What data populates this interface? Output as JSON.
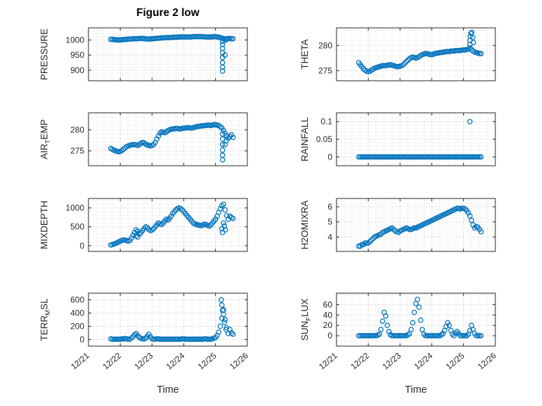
{
  "figure": {
    "title": "Figure 2 low",
    "xlabel": "Time",
    "marker_color": "#0072BD",
    "axis_color": "#262626",
    "grid_color": "#bbbbbb",
    "minor_grid_color": "#dcdcdc"
  },
  "chart_data": [
    {
      "type": "scatter",
      "name": "PRESSURE",
      "ylabel": {
        "pre": "PRESSURE",
        "sub": "",
        "post": ""
      },
      "x_start": 0.7,
      "x_step": 0.05,
      "xlim": [
        0,
        5
      ],
      "xticks": [
        0,
        1,
        2,
        3,
        4,
        5
      ],
      "xtick_labels": [
        "12/21",
        "12/22",
        "12/23",
        "12/24",
        "12/25",
        "12/26"
      ],
      "ylim": [
        865,
        1040
      ],
      "yticks": [
        900,
        950,
        1000
      ],
      "ytick_labels": [
        "900",
        "950",
        "1000"
      ],
      "y": [
        1002,
        1002,
        1001,
        1001,
        1000,
        1000,
        1000,
        1001,
        1001,
        1002,
        1002,
        1003,
        1003,
        1003,
        1004,
        1004,
        1004,
        1004,
        1005,
        1005,
        1005,
        1004,
        1004,
        1003,
        1003,
        1003,
        1004,
        1004,
        1005,
        1005,
        1006,
        1006,
        1007,
        1007,
        1007,
        1008,
        1008,
        1008,
        1008,
        1009,
        1009,
        1009,
        1009,
        1010,
        1010,
        1010,
        1010,
        1010,
        1010,
        1010,
        1010,
        1010,
        1011,
        1011,
        1011,
        1011,
        1011,
        1011,
        1011,
        1010,
        1010,
        1010,
        1010,
        1010,
        1010,
        1011,
        1011,
        1010,
        1009,
        1008,
        1006,
        1004,
        1003,
        1004,
        1005,
        1005,
        1004,
        1004
      ],
      "extra": [
        [
          4.22,
          995
        ],
        [
          4.22,
          985
        ],
        [
          4.22,
          972
        ],
        [
          4.22,
          958
        ],
        [
          4.22,
          942
        ],
        [
          4.22,
          925
        ],
        [
          4.22,
          910
        ],
        [
          4.22,
          897
        ],
        [
          4.3,
          950
        ],
        [
          4.33,
          1000
        ]
      ]
    },
    {
      "type": "scatter",
      "name": "THETA",
      "ylabel": {
        "pre": "THETA",
        "sub": "",
        "post": ""
      },
      "x_start": 0.7,
      "x_step": 0.05,
      "xlim": [
        0,
        5
      ],
      "xticks": [
        0,
        1,
        2,
        3,
        4,
        5
      ],
      "xtick_labels": [
        "12/21",
        "12/22",
        "12/23",
        "12/24",
        "12/25",
        "12/26"
      ],
      "ylim": [
        273,
        283.5
      ],
      "yticks": [
        275,
        280
      ],
      "ytick_labels": [
        "275",
        "280"
      ],
      "y": [
        276.6,
        276.2,
        275.8,
        275.4,
        275.1,
        274.9,
        274.8,
        274.9,
        275.1,
        275.3,
        275.5,
        275.6,
        275.7,
        275.8,
        275.9,
        276.0,
        276.0,
        276.0,
        276.1,
        276.1,
        276.2,
        276.1,
        276.0,
        275.9,
        275.8,
        275.8,
        275.9,
        276.0,
        276.2,
        276.5,
        276.8,
        277.1,
        277.4,
        277.6,
        277.7,
        277.6,
        277.5,
        277.6,
        277.8,
        278.0,
        278.2,
        278.3,
        278.4,
        278.4,
        278.3,
        278.2,
        278.2,
        278.3,
        278.4,
        278.5,
        278.5,
        278.6,
        278.6,
        278.7,
        278.7,
        278.8,
        278.8,
        278.8,
        278.9,
        278.9,
        278.9,
        279.0,
        279.0,
        279.0,
        279.0,
        279.1,
        279.1,
        279.1,
        279.2,
        279.3,
        279.5,
        279.2,
        278.9,
        278.7,
        278.6,
        278.5,
        278.4,
        278.4
      ],
      "extra": [
        [
          4.2,
          280.2
        ],
        [
          4.2,
          281.0
        ],
        [
          4.21,
          281.8
        ],
        [
          4.23,
          282.4
        ],
        [
          4.26,
          282.6
        ],
        [
          4.29,
          281.6
        ],
        [
          4.31,
          280.6
        ]
      ]
    },
    {
      "type": "scatter",
      "name": "AIR_TEMP",
      "ylabel": {
        "pre": "AIR",
        "sub": "T",
        "post": "EMP"
      },
      "x_start": 0.7,
      "x_step": 0.05,
      "xlim": [
        0,
        5
      ],
      "xticks": [
        0,
        1,
        2,
        3,
        4,
        5
      ],
      "xtick_labels": [
        "12/21",
        "12/22",
        "12/23",
        "12/24",
        "12/25",
        "12/26"
      ],
      "ylim": [
        271.5,
        284
      ],
      "yticks": [
        275,
        280
      ],
      "ytick_labels": [
        "275",
        "280"
      ],
      "y": [
        275.6,
        275.4,
        275.2,
        275.0,
        274.9,
        274.8,
        274.9,
        275.1,
        275.4,
        275.7,
        276.0,
        276.2,
        276.3,
        276.4,
        276.5,
        276.5,
        276.4,
        276.3,
        276.5,
        276.8,
        277.0,
        276.9,
        276.6,
        276.4,
        276.3,
        276.2,
        276.3,
        276.5,
        277.0,
        277.8,
        278.5,
        279.2,
        279.5,
        279.4,
        279.3,
        279.5,
        279.8,
        280.0,
        280.1,
        280.2,
        280.2,
        280.3,
        280.3,
        280.2,
        280.2,
        280.3,
        280.4,
        280.4,
        280.5,
        280.5,
        280.4,
        280.4,
        280.5,
        280.6,
        280.7,
        280.8,
        280.8,
        280.9,
        280.9,
        281.0,
        281.0,
        281.1,
        281.1,
        281.0,
        281.1,
        281.2,
        281.2,
        281.1,
        281.0,
        280.7,
        280.4,
        279.8,
        279.2,
        278.6,
        278.0,
        278.4,
        278.8,
        278.2
      ],
      "extra": [
        [
          4.22,
          279.0
        ],
        [
          4.22,
          277.8
        ],
        [
          4.22,
          276.5
        ],
        [
          4.22,
          275.2
        ],
        [
          4.22,
          274.0
        ],
        [
          4.22,
          272.9
        ],
        [
          4.3,
          276.5
        ],
        [
          4.34,
          277.4
        ]
      ]
    },
    {
      "type": "scatter",
      "name": "RAINFALL",
      "ylabel": {
        "pre": "RAINFALL",
        "sub": "",
        "post": ""
      },
      "x_start": 0.7,
      "x_step": 0.05,
      "xlim": [
        0,
        5
      ],
      "xticks": [
        0,
        1,
        2,
        3,
        4,
        5
      ],
      "xtick_labels": [
        "12/21",
        "12/22",
        "12/23",
        "12/24",
        "12/25",
        "12/26"
      ],
      "ylim": [
        -0.025,
        0.125
      ],
      "yticks": [
        0,
        0.05,
        0.1
      ],
      "ytick_labels": [
        "0",
        "0.05",
        "0.1"
      ],
      "y": [
        0,
        0,
        0,
        0,
        0,
        0,
        0,
        0,
        0,
        0,
        0,
        0,
        0,
        0,
        0,
        0,
        0,
        0,
        0,
        0,
        0,
        0,
        0,
        0,
        0,
        0,
        0,
        0,
        0,
        0,
        0,
        0,
        0,
        0,
        0,
        0,
        0,
        0,
        0,
        0,
        0,
        0,
        0,
        0,
        0,
        0,
        0,
        0,
        0,
        0,
        0,
        0,
        0,
        0,
        0,
        0,
        0,
        0,
        0,
        0,
        0,
        0,
        0,
        0,
        0,
        0,
        0,
        0,
        0,
        0,
        0,
        0,
        0,
        0,
        0,
        0,
        0,
        0
      ],
      "extra": [
        [
          4.2,
          0.1
        ]
      ]
    },
    {
      "type": "scatter",
      "name": "MIXDEPTH",
      "ylabel": {
        "pre": "MIXDEPTH",
        "sub": "",
        "post": ""
      },
      "x_start": 0.7,
      "x_step": 0.05,
      "xlim": [
        0,
        5
      ],
      "xticks": [
        0,
        1,
        2,
        3,
        4,
        5
      ],
      "xtick_labels": [
        "12/21",
        "12/22",
        "12/23",
        "12/24",
        "12/25",
        "12/26"
      ],
      "ylim": [
        -150,
        1250
      ],
      "yticks": [
        0,
        500,
        1000
      ],
      "ytick_labels": [
        "0",
        "500",
        "1000"
      ],
      "y": [
        20,
        30,
        45,
        60,
        80,
        100,
        120,
        140,
        155,
        150,
        135,
        125,
        140,
        200,
        280,
        350,
        420,
        380,
        310,
        340,
        400,
        450,
        500,
        480,
        430,
        400,
        420,
        450,
        500,
        550,
        600,
        580,
        560,
        600,
        650,
        700,
        680,
        720,
        780,
        850,
        900,
        950,
        980,
        1000,
        980,
        950,
        900,
        850,
        800,
        750,
        700,
        650,
        600,
        580,
        560,
        550,
        540,
        530,
        550,
        570,
        560,
        540,
        520,
        550,
        600,
        650,
        700,
        780,
        880,
        980,
        1060,
        1100,
        950,
        800,
        700,
        780,
        750,
        720
      ],
      "extra": [
        [
          1.5,
          260
        ],
        [
          1.55,
          230
        ],
        [
          4.2,
          450
        ],
        [
          4.22,
          350
        ],
        [
          4.25,
          600
        ],
        [
          4.28,
          520
        ],
        [
          4.31,
          420
        ]
      ]
    },
    {
      "type": "scatter",
      "name": "H2OMIXRA",
      "ylabel": {
        "pre": "H2OMIXRA",
        "sub": "",
        "post": ""
      },
      "x_start": 0.7,
      "x_step": 0.05,
      "xlim": [
        0,
        5
      ],
      "xticks": [
        0,
        1,
        2,
        3,
        4,
        5
      ],
      "xtick_labels": [
        "12/21",
        "12/22",
        "12/23",
        "12/24",
        "12/25",
        "12/26"
      ],
      "ylim": [
        3.05,
        6.55
      ],
      "yticks": [
        4,
        5,
        6
      ],
      "ytick_labels": [
        "4",
        "5",
        "6"
      ],
      "y": [
        3.4,
        3.4,
        3.5,
        3.5,
        3.6,
        3.6,
        3.6,
        3.7,
        3.8,
        3.9,
        4.0,
        4.05,
        4.1,
        4.15,
        4.2,
        4.3,
        4.35,
        4.4,
        4.45,
        4.5,
        4.55,
        4.6,
        4.5,
        4.4,
        4.35,
        4.3,
        4.4,
        4.45,
        4.5,
        4.55,
        4.6,
        4.55,
        4.5,
        4.5,
        4.55,
        4.6,
        4.6,
        4.65,
        4.7,
        4.75,
        4.8,
        4.85,
        4.9,
        4.95,
        5.0,
        5.05,
        5.1,
        5.15,
        5.2,
        5.25,
        5.3,
        5.35,
        5.4,
        5.45,
        5.5,
        5.55,
        5.6,
        5.65,
        5.7,
        5.75,
        5.8,
        5.85,
        5.9,
        5.9,
        5.85,
        5.9,
        5.9,
        5.85,
        5.75,
        5.6,
        5.4,
        5.1,
        4.8,
        4.6,
        4.7,
        4.65,
        4.5,
        4.35
      ],
      "extra": []
    },
    {
      "type": "scatter",
      "name": "TERR_MSL",
      "ylabel": {
        "pre": "TERR",
        "sub": "M",
        "post": "SL"
      },
      "x_start": 0.7,
      "x_step": 0.05,
      "xlim": [
        0,
        5
      ],
      "xticks": [
        0,
        1,
        2,
        3,
        4,
        5
      ],
      "xtick_labels": [
        "12/21",
        "12/22",
        "12/23",
        "12/24",
        "12/25",
        "12/26"
      ],
      "ylim": [
        -100,
        700
      ],
      "yticks": [
        0,
        200,
        400,
        600
      ],
      "ytick_labels": [
        "0",
        "200",
        "400",
        "600"
      ],
      "y": [
        10,
        5,
        5,
        5,
        5,
        5,
        5,
        10,
        10,
        15,
        10,
        5,
        5,
        20,
        40,
        70,
        90,
        60,
        30,
        20,
        10,
        10,
        20,
        50,
        80,
        40,
        10,
        5,
        5,
        10,
        10,
        5,
        5,
        5,
        5,
        5,
        5,
        5,
        5,
        5,
        5,
        5,
        5,
        5,
        5,
        10,
        10,
        5,
        5,
        5,
        5,
        5,
        5,
        5,
        5,
        5,
        5,
        5,
        5,
        10,
        10,
        5,
        5,
        5,
        10,
        20,
        30,
        60,
        110,
        200,
        320,
        450,
        300,
        180,
        90,
        150,
        100,
        80
      ],
      "extra": [
        [
          4.18,
          600
        ],
        [
          4.2,
          520
        ],
        [
          4.22,
          440
        ],
        [
          4.25,
          380
        ],
        [
          4.28,
          260
        ],
        [
          4.33,
          150
        ]
      ]
    },
    {
      "type": "scatter",
      "name": "SUN_FLUX",
      "ylabel": {
        "pre": "SUN",
        "sub": "F",
        "post": "LUX"
      },
      "x_start": 0.7,
      "x_step": 0.05,
      "xlim": [
        0,
        5
      ],
      "xticks": [
        0,
        1,
        2,
        3,
        4,
        5
      ],
      "xtick_labels": [
        "12/21",
        "12/22",
        "12/23",
        "12/24",
        "12/25",
        "12/26"
      ],
      "ylim": [
        -20,
        82
      ],
      "yticks": [
        0,
        20,
        40,
        60
      ],
      "ytick_labels": [
        "0",
        "20",
        "40",
        "60"
      ],
      "y": [
        0,
        0,
        0,
        0,
        0,
        0,
        0,
        0,
        0,
        0,
        0,
        0,
        1,
        3,
        12,
        28,
        45,
        38,
        20,
        8,
        2,
        0,
        0,
        0,
        0,
        0,
        0,
        0,
        0,
        0,
        0,
        2,
        4,
        12,
        25,
        45,
        62,
        70,
        55,
        30,
        12,
        3,
        0,
        0,
        0,
        0,
        0,
        0,
        0,
        0,
        0,
        0,
        2,
        4,
        10,
        18,
        25,
        20,
        10,
        3,
        0,
        5,
        8,
        4,
        0,
        0,
        0,
        0,
        0,
        3,
        10,
        20,
        12,
        4,
        0,
        0,
        0,
        0
      ],
      "extra": []
    }
  ]
}
